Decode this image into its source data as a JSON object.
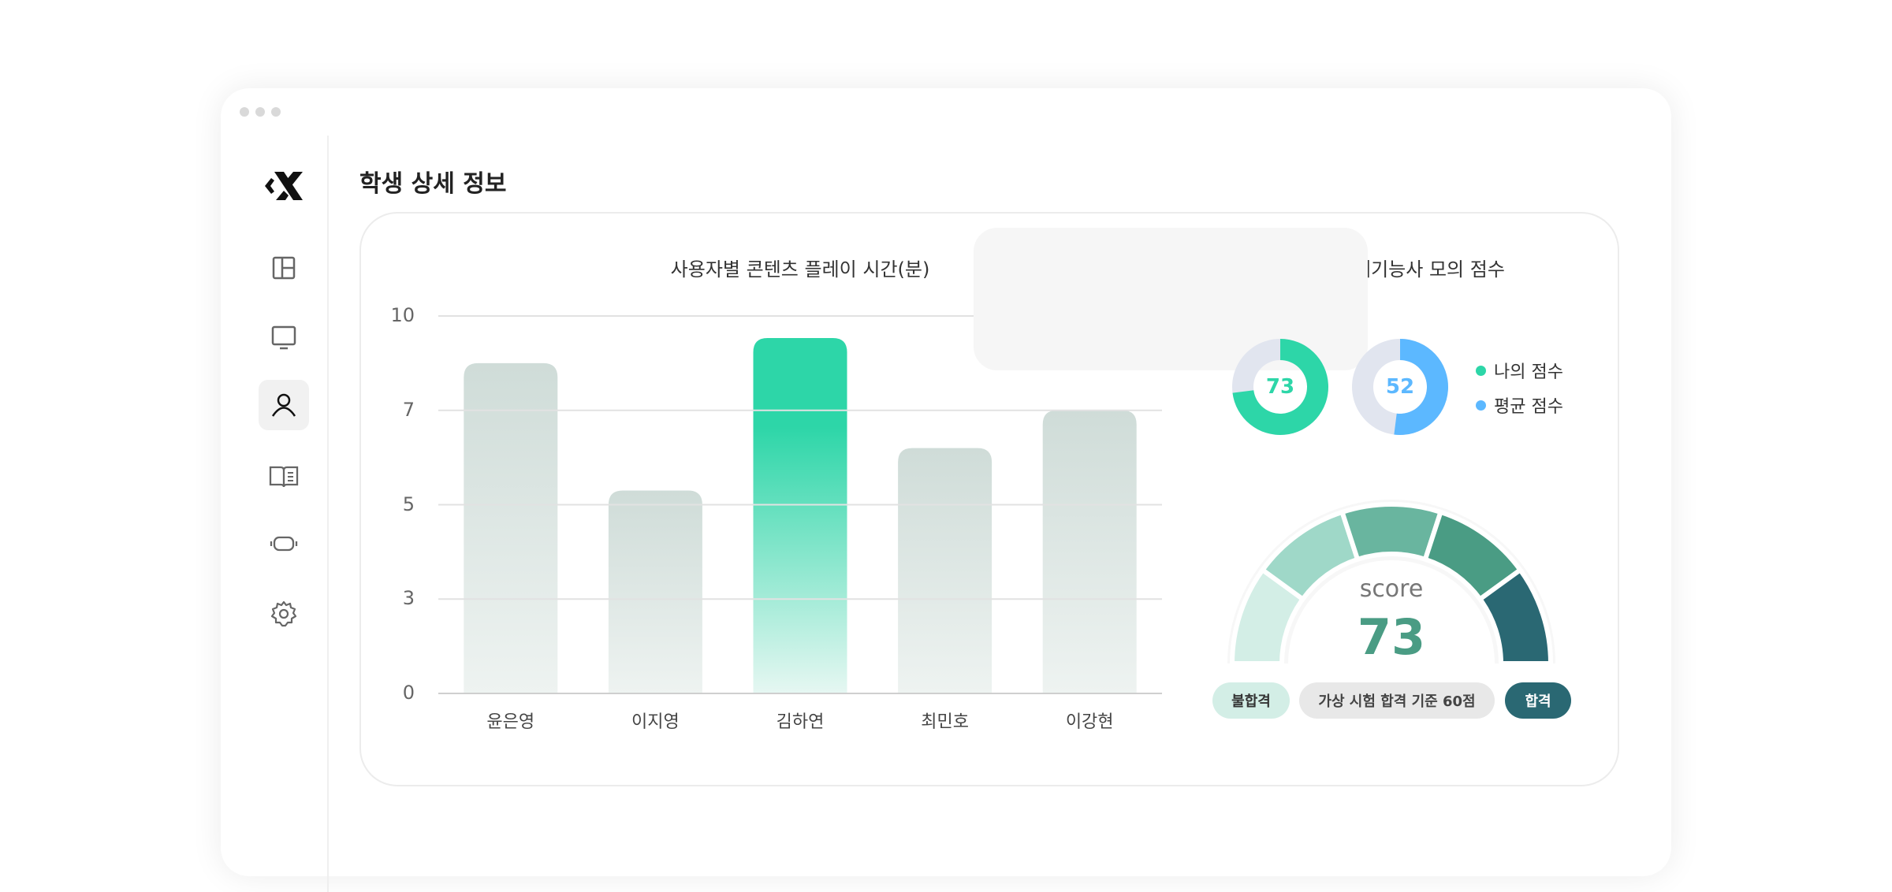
{
  "page": {
    "title": "학생 상세 정보"
  },
  "sidebar": {
    "items": [
      {
        "icon": "logo-icon"
      },
      {
        "icon": "layout-icon"
      },
      {
        "icon": "monitor-icon"
      },
      {
        "icon": "user-icon",
        "active": true
      },
      {
        "icon": "book-icon"
      },
      {
        "icon": "vr-headset-icon"
      },
      {
        "icon": "gear-icon"
      }
    ]
  },
  "chart_data": {
    "type": "bar",
    "title": "사용자별 콘텐츠 플레이 시간(분)",
    "categories": [
      "윤은영",
      "이지영",
      "김하연",
      "최민호",
      "이강현"
    ],
    "values": [
      8.5,
      5.3,
      9.3,
      6.2,
      7.0
    ],
    "highlight": "김하연",
    "yticks": [
      0,
      3,
      5,
      7,
      10
    ],
    "ylim": [
      0,
      10
    ],
    "grid": true,
    "colors": {
      "default": "#cfdcd8",
      "highlight": "#2dd6a8"
    }
  },
  "score": {
    "title": "목포대 비계기능사 모의 점수",
    "my_score": 73,
    "avg_score": 52,
    "legend": [
      {
        "label": "나의 점수",
        "color": "#2dd6a8"
      },
      {
        "label": "평균 점수",
        "color": "#5cb8ff"
      }
    ],
    "gauge": {
      "label": "score",
      "value": "73",
      "colors": [
        "#d3eee6",
        "#9fd8c8",
        "#69b59f",
        "#4a9c84",
        "#2a6873"
      ]
    },
    "fail_label": "불합격",
    "criteria_label": "가상 시험 합격 기준 60점",
    "pass_label": "합격"
  }
}
